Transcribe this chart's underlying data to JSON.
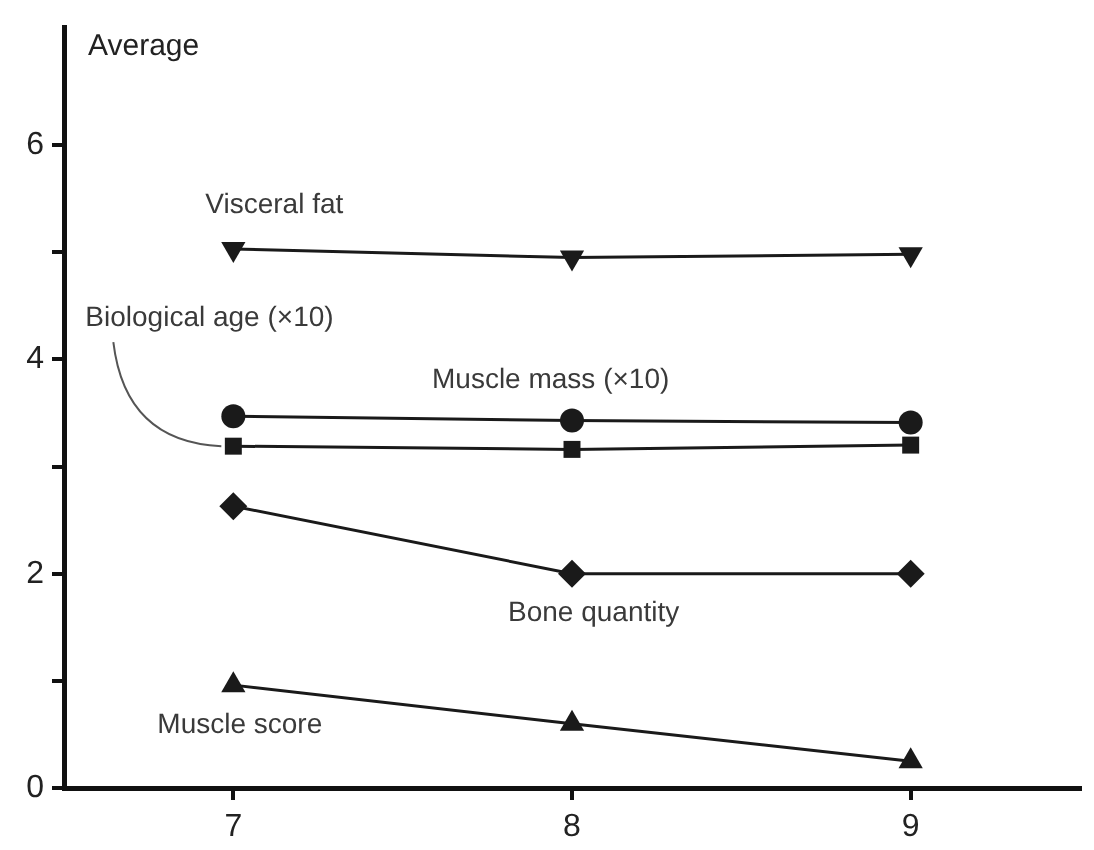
{
  "chart_data": {
    "type": "line",
    "ylabel": "Average",
    "x": [
      7,
      8,
      9
    ],
    "xlim": [
      6.5,
      9.5
    ],
    "xticks": [
      7,
      8,
      9
    ],
    "ylim": [
      0,
      7.1
    ],
    "yticks": [
      0,
      {
        "value": 1,
        "label": null
      },
      2,
      {
        "value": 3,
        "label": null
      },
      4,
      {
        "value": 5,
        "label": null
      },
      6
    ],
    "grid": false,
    "legend": false,
    "series": [
      {
        "name": "Visceral fat",
        "color": "#1a1a1a",
        "marker": "triangle-down",
        "values": [
          5.03,
          4.95,
          4.98
        ]
      },
      {
        "name": "Muscle mass (×10)",
        "color": "#1a1a1a",
        "marker": "circle",
        "values": [
          3.47,
          3.43,
          3.41
        ]
      },
      {
        "name": "Biological age (×10)",
        "color": "#1a1a1a",
        "marker": "square",
        "values": [
          3.19,
          3.16,
          3.2
        ]
      },
      {
        "name": "Bone quantity",
        "color": "#1a1a1a",
        "marker": "diamond",
        "values": [
          2.63,
          2.0,
          2.0
        ]
      },
      {
        "name": "Muscle score",
        "color": "#1a1a1a",
        "marker": "triangle",
        "values": [
          0.96,
          0.6,
          0.25
        ]
      }
    ]
  }
}
